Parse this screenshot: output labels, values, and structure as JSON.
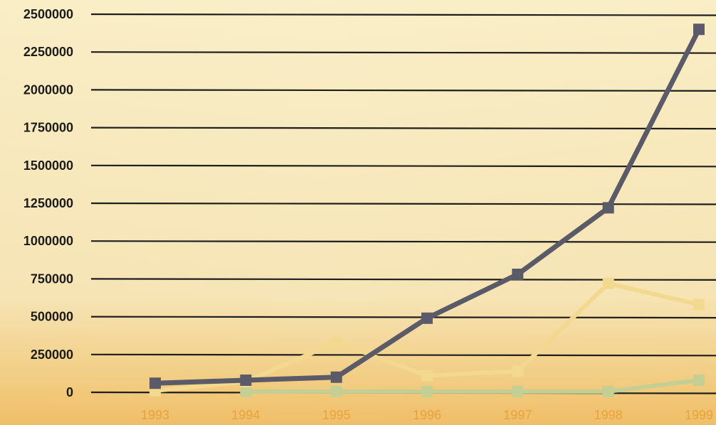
{
  "chart_data": {
    "type": "line",
    "title": "",
    "xlabel": "",
    "ylabel": "",
    "x": [
      "1993",
      "1994",
      "1995",
      "1996",
      "1997",
      "1998",
      "1999"
    ],
    "ylim": [
      0,
      2500000
    ],
    "yticks": [
      "2500000",
      "2250000",
      "2000000",
      "1750000",
      "1500000",
      "1250000",
      "1000000",
      "750000",
      "500000",
      "250000",
      "0"
    ],
    "grid": true,
    "legend": "none",
    "series": [
      {
        "color": "#5a5a68",
        "values": [
          60000,
          80000,
          100000,
          490000,
          780000,
          1220000,
          2400000
        ]
      },
      {
        "color": "#f3d98f",
        "values": [
          10000,
          70000,
          330000,
          110000,
          140000,
          720000,
          580000
        ]
      },
      {
        "color": "#c3cf93",
        "values": [
          null,
          5000,
          5000,
          5000,
          5000,
          5000,
          80000
        ]
      }
    ]
  }
}
